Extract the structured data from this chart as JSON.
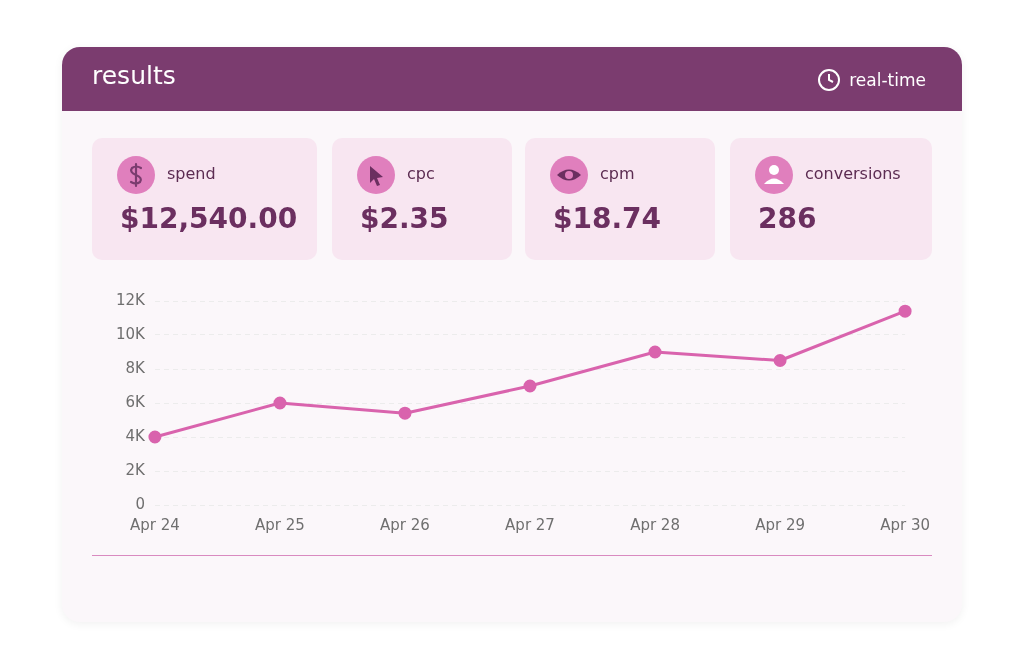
{
  "chart_data": [
    {
      "type": "other",
      "title": "results",
      "annotations": [
        "real-time",
        "spend",
        "$12,540.00",
        "cpc",
        "$2.35",
        "cpm",
        "$18.74",
        "conversions",
        "286"
      ]
    },
    {
      "type": "line",
      "categories": [
        "Apr 24",
        "Apr 25",
        "Apr 26",
        "Apr 27",
        "Apr 28",
        "Apr 29",
        "Apr 30"
      ],
      "series": [
        {
          "color": "#d963ad",
          "values": [
            4000,
            6000,
            5400,
            7000,
            9000,
            8500,
            11400
          ]
        }
      ],
      "ylim": [
        0,
        12000
      ],
      "yticks": [
        0,
        {
          "value": 2000,
          "label": "2K"
        },
        {
          "value": 4000,
          "label": "4K"
        },
        {
          "value": 6000,
          "label": "6K"
        },
        {
          "value": 8000,
          "label": "8K"
        },
        {
          "value": 10000,
          "label": "10K"
        },
        {
          "value": 12000,
          "label": "12K"
        }
      ],
      "grid": "y",
      "marker": "circle",
      "line_style": "solid",
      "legend": false
    }
  ]
}
